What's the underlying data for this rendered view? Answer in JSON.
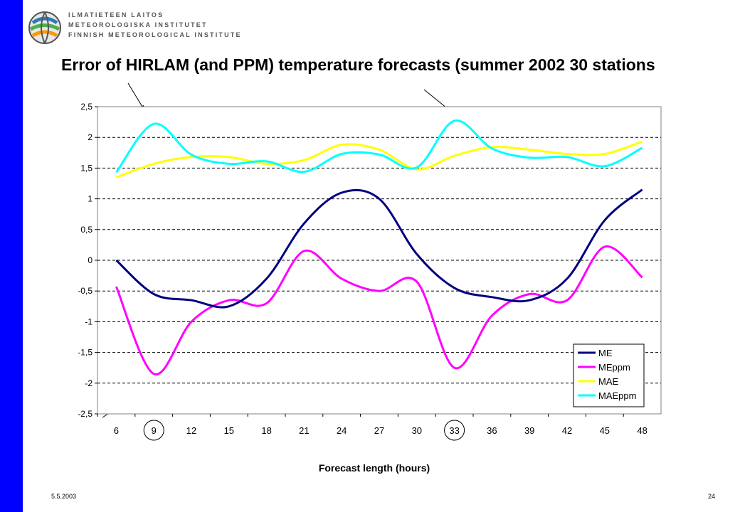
{
  "header": {
    "logo_lines": [
      "ILMATIETEEN LAITOS",
      "METEOROLOGISKA INSTITUTET",
      "FINNISH METEOROLOGICAL INSTITUTE"
    ],
    "title": "Error of HIRLAM (and PPM) temperature forecasts (summer 2002 30 stations"
  },
  "footer": {
    "date": "5.5.2003",
    "page": "24"
  },
  "chart_data": {
    "type": "line",
    "title": "Error of HIRLAM (and PPM) temperature forecasts (summer 2002 30 stations",
    "xlabel": "Forecast length (hours)",
    "ylabel": "",
    "x": [
      6,
      9,
      12,
      15,
      18,
      21,
      24,
      27,
      30,
      33,
      36,
      39,
      42,
      45,
      48
    ],
    "x_ticks": [
      "6",
      "9",
      "12",
      "15",
      "18",
      "21",
      "24",
      "27",
      "30",
      "33",
      "36",
      "39",
      "42",
      "45",
      "48"
    ],
    "y_ticks": [
      "2,5",
      "2",
      "1,5",
      "1",
      "0,5",
      "0",
      "-0,5",
      "-1",
      "-1,5",
      "-2",
      "-2,5"
    ],
    "ylim": [
      -2.5,
      2.5
    ],
    "grid": "horizontal dashed",
    "legend_position": "bottom-right",
    "circled_x": [
      9,
      33
    ],
    "series": [
      {
        "name": "ME",
        "color": "#000080",
        "values": [
          0.0,
          -0.55,
          -0.65,
          -0.75,
          -0.3,
          0.6,
          1.1,
          1.0,
          0.1,
          -0.45,
          -0.6,
          -0.65,
          -0.3,
          0.65,
          1.15
        ]
      },
      {
        "name": "MEppm",
        "color": "#ff00ff",
        "values": [
          -0.43,
          -1.85,
          -1.0,
          -0.65,
          -0.7,
          0.15,
          -0.3,
          -0.5,
          -0.35,
          -1.75,
          -0.9,
          -0.55,
          -0.65,
          0.22,
          -0.28
        ]
      },
      {
        "name": "MAE",
        "color": "#ffff00",
        "values": [
          1.35,
          1.57,
          1.68,
          1.68,
          1.57,
          1.63,
          1.88,
          1.8,
          1.48,
          1.7,
          1.84,
          1.8,
          1.73,
          1.73,
          1.93
        ]
      },
      {
        "name": "MAEppm",
        "color": "#00ffff",
        "values": [
          1.43,
          2.22,
          1.72,
          1.57,
          1.61,
          1.44,
          1.73,
          1.72,
          1.51,
          2.27,
          1.82,
          1.67,
          1.68,
          1.53,
          1.83
        ]
      }
    ]
  }
}
